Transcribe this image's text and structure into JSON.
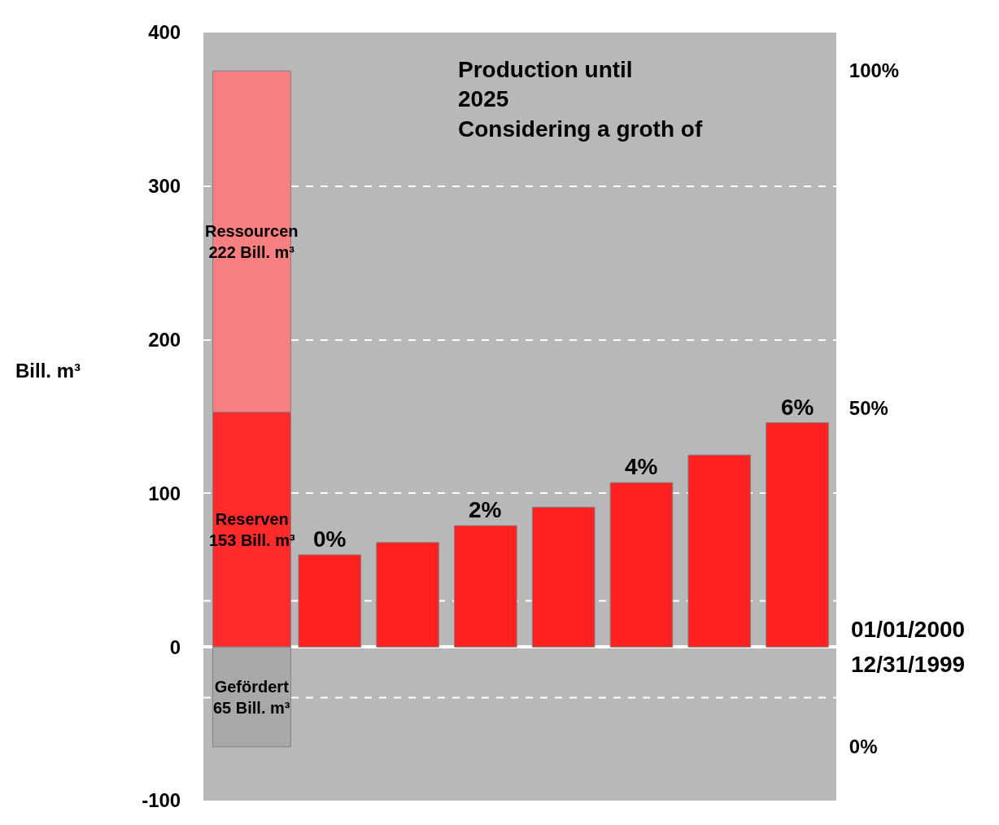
{
  "chart_data": {
    "type": "bar",
    "stacked": true,
    "ylabel": "Bill. m³",
    "categories": [
      null,
      null,
      null,
      null,
      null,
      null,
      null,
      null
    ],
    "series": [
      {
        "color": "#ff2a2a",
        "values": [
          153,
          null,
          null,
          null,
          null,
          null,
          null,
          null
        ]
      },
      {
        "color": "#f88080",
        "values": [
          222,
          null,
          null,
          null,
          null,
          null,
          null,
          null
        ]
      },
      {
        "color": "#a8a8a8",
        "values": [
          -65,
          null,
          null,
          null,
          null,
          null,
          null,
          null
        ]
      },
      {
        "color": "#ff2020",
        "values": [
          null,
          60,
          68,
          79,
          91,
          107,
          125,
          146
        ]
      }
    ],
    "ylim": [
      -100,
      400
    ],
    "yticks": [
      -100,
      0,
      100,
      200,
      300,
      400
    ],
    "y2lim": [
      -8,
      105.6
    ],
    "y2ticks": [
      {
        "value": 0,
        "label": "0%"
      },
      {
        "value": 10,
        "label": null
      },
      {
        "value": 20,
        "label": null
      },
      {
        "value": 30,
        "label": null
      },
      {
        "value": 40,
        "label": null
      },
      {
        "value": 50,
        "label": "50%"
      },
      {
        "value": 60,
        "label": null
      },
      {
        "value": 70,
        "label": null
      },
      {
        "value": 80,
        "label": null
      },
      {
        "value": 90,
        "label": null
      },
      {
        "value": 100,
        "label": "100%"
      }
    ],
    "ref_lines": [
      {
        "axis": "y",
        "value": 30,
        "color": "#ffffff",
        "line_style": "dashed"
      },
      {
        "axis": "y",
        "value": -33,
        "color": "#ffffff",
        "line_style": "dashed"
      }
    ],
    "annotations": [
      "Production until\n2025\nConsidering a groth of",
      "Ressourcen\n222 Bill. m³",
      "Reserven\n153 Bill. m³",
      "Gefördert\n65 Bill. m³",
      "0%",
      "2%",
      "4%",
      "6%",
      "01/01/2000",
      "12/31/1999"
    ],
    "grid": "y",
    "legend": false
  }
}
